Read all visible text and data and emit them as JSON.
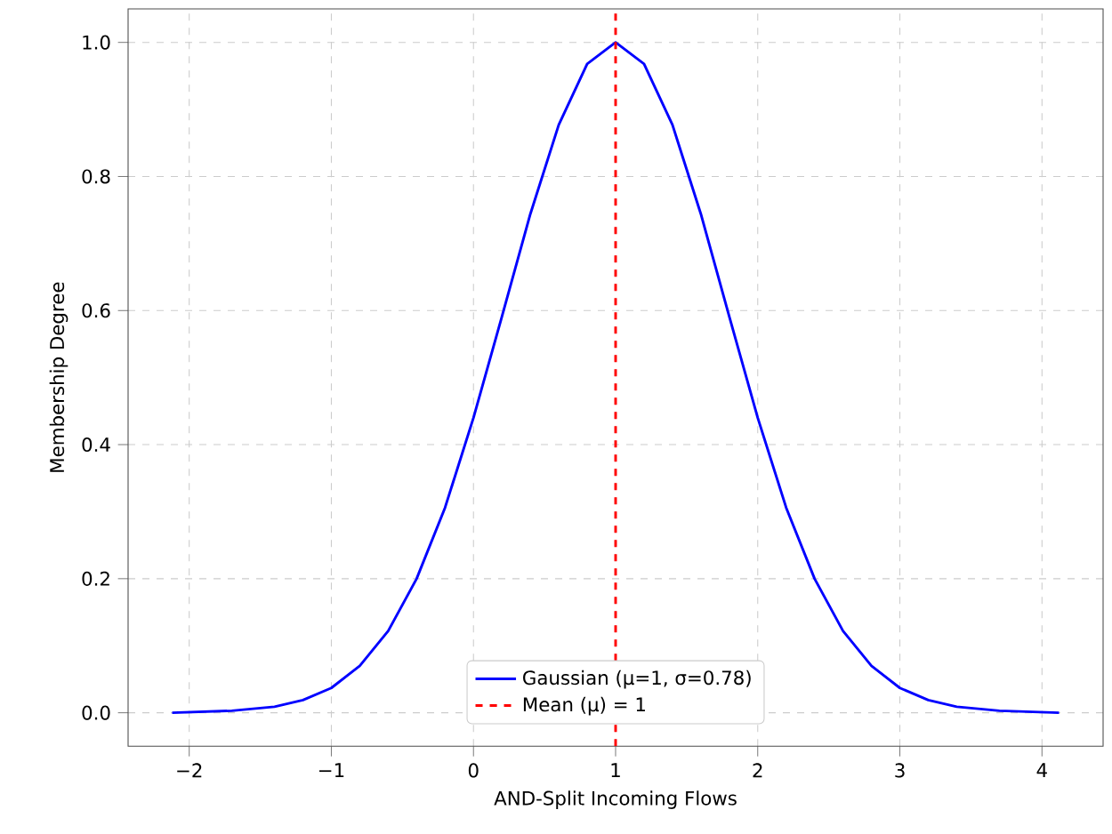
{
  "chart_data": {
    "type": "line",
    "xlabel": "AND-Split Incoming Flows",
    "ylabel": "Membership Degree",
    "x": [
      -2.12,
      -1.7,
      -1.4,
      -1.2,
      -1.0,
      -0.8,
      -0.6,
      -0.4,
      -0.2,
      0,
      0.2,
      0.4,
      0.6,
      0.8,
      1.0,
      1.2,
      1.4,
      1.6,
      1.8,
      2.0,
      2.2,
      2.4,
      2.6,
      2.8,
      3.0,
      3.2,
      3.4,
      3.7,
      4.12
    ],
    "series": [
      {
        "name": "Gaussian (μ=1, σ=0.78)",
        "color": "#0000ff",
        "values": [
          0.0,
          0.003,
          0.009,
          0.019,
          0.037,
          0.07,
          0.122,
          0.2,
          0.306,
          0.44,
          0.591,
          0.744,
          0.877,
          0.968,
          1.0,
          0.968,
          0.877,
          0.744,
          0.591,
          0.44,
          0.306,
          0.2,
          0.122,
          0.07,
          0.037,
          0.019,
          0.009,
          0.003,
          0.0
        ]
      }
    ],
    "ref_lines": [
      {
        "axis": "x",
        "value": 1,
        "label": "Mean (μ) = 1",
        "color": "#ff0000",
        "line_style": "dashed"
      }
    ],
    "xlim": [
      -2.43,
      4.43
    ],
    "ylim": [
      -0.05,
      1.05
    ],
    "xticks": [
      {
        "value": -2,
        "label": "−2"
      },
      {
        "value": -1,
        "label": "−1"
      },
      0,
      1,
      2,
      3,
      4
    ],
    "yticks": [
      {
        "value": 0,
        "label": "0.0"
      },
      0.2,
      0.4,
      0.6,
      0.8,
      {
        "value": 1,
        "label": "1.0"
      }
    ],
    "grid": true,
    "legend": "bottom"
  }
}
